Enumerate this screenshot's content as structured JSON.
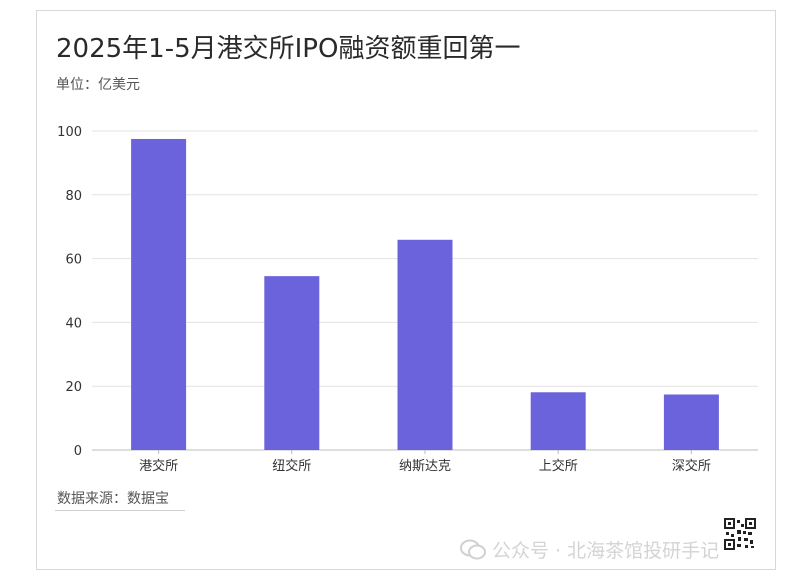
{
  "header": {
    "title": "2025年1-5月港交所IPO融资额重回第一",
    "unit": "单位：亿美元"
  },
  "footer": {
    "source": "数据来源：数据宝",
    "watermark": "公众号 · 北海茶馆投研手记"
  },
  "colors": {
    "bar": "#6b63dc",
    "grid": "#e3e3e3",
    "axis": "#bdbdbd",
    "text": "#333333"
  },
  "chart_data": {
    "type": "bar",
    "title": "2025年1-5月港交所IPO融资额重回第一",
    "subtitle": "单位：亿美元",
    "categories": [
      "港交所",
      "纽交所",
      "纳斯达克",
      "上交所",
      "深交所"
    ],
    "values": [
      97.5,
      54.5,
      65.9,
      18.1,
      17.4
    ],
    "ylim": [
      0,
      100
    ],
    "yticks": [
      0,
      20,
      40,
      60,
      80,
      100
    ],
    "xlabel": "",
    "ylabel": "",
    "grid": true,
    "legend": "none"
  }
}
